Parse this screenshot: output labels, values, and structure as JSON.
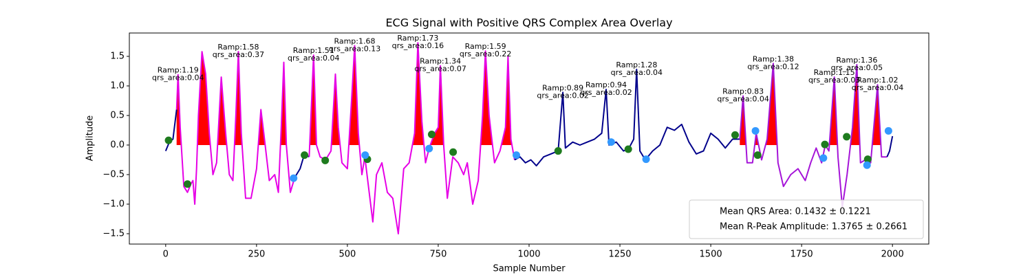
{
  "chart_data": {
    "type": "line",
    "title": "ECG Signal with Positive QRS Complex Area Overlay",
    "xlabel": "Sample Number",
    "ylabel": "Amplitude",
    "xlim": [
      -100,
      2100
    ],
    "ylim": [
      -1.675,
      1.895
    ],
    "xticks": [
      0,
      250,
      500,
      750,
      1000,
      1250,
      1500,
      1750,
      2000
    ],
    "yticks": [
      {
        "value": -1.5,
        "label": "−1.5"
      },
      {
        "value": -1,
        "label": "−1.0"
      },
      {
        "value": -0.5,
        "label": "−0.5"
      },
      {
        "value": 0,
        "label": "0.0"
      },
      0.5,
      {
        "value": 1,
        "label": "1.0"
      },
      1.5
    ],
    "fill_positive_color": "#ff0000",
    "series": [
      {
        "color": "#00008b",
        "fill_positive": false,
        "x": [
          0,
          10,
          20,
          30
        ],
        "values": [
          -0.1,
          0.05,
          0.1,
          0.6
        ]
      },
      {
        "color": "#e600e6",
        "fill_positive": true,
        "x": [
          30,
          34,
          40,
          50,
          60,
          70,
          75,
          80,
          85,
          90,
          100,
          110,
          120,
          130,
          140,
          153,
          165,
          175,
          185,
          193,
          200,
          208,
          220,
          235,
          250,
          262,
          270,
          285,
          300,
          310,
          318,
          325,
          332,
          343,
          355
        ],
        "values": [
          0.6,
          1.19,
          0.3,
          -0.7,
          -0.8,
          -0.65,
          -0.6,
          -1.0,
          -0.4,
          0.5,
          1.58,
          1.2,
          0.2,
          -0.5,
          -0.3,
          1.15,
          0.2,
          -0.5,
          -0.6,
          0.5,
          1.58,
          0.2,
          -0.9,
          -0.9,
          -0.4,
          0.6,
          0.2,
          -0.6,
          -0.5,
          -0.8,
          0.3,
          1.4,
          0.0,
          -0.8,
          -0.55
        ]
      },
      {
        "color": "#00008b",
        "fill_positive": false,
        "x": [
          355,
          370,
          382,
          395
        ],
        "values": [
          -0.55,
          -0.4,
          -0.15,
          -0.2
        ]
      },
      {
        "color": "#e600e6",
        "fill_positive": true,
        "x": [
          395,
          407,
          415,
          425,
          440,
          455,
          467,
          475,
          485,
          500,
          512,
          520,
          530,
          540,
          548,
          560,
          570,
          580,
          595,
          610,
          625,
          640,
          655,
          670,
          685,
          694,
          705,
          715,
          725,
          740,
          750,
          756,
          765,
          775,
          790,
          805,
          820,
          830,
          845,
          860,
          872,
          880,
          890,
          905,
          920,
          935,
          942,
          950,
          960
        ],
        "values": [
          -0.2,
          1.52,
          0.0,
          -0.2,
          -0.25,
          -0.1,
          1.2,
          0.3,
          -0.3,
          -0.4,
          0.8,
          1.68,
          0.2,
          -0.5,
          -0.2,
          -0.8,
          -1.3,
          -0.5,
          -0.3,
          -0.8,
          -0.9,
          -1.5,
          -0.4,
          -0.3,
          0.2,
          1.73,
          0.4,
          -0.3,
          -0.05,
          0.2,
          0.3,
          1.34,
          0.0,
          -0.9,
          -0.2,
          -0.3,
          -0.5,
          -0.3,
          -1.0,
          -0.6,
          0.5,
          1.59,
          0.5,
          -0.3,
          -0.1,
          0.3,
          1.5,
          0.1,
          -0.25
        ]
      },
      {
        "color": "#00008b",
        "fill_positive": false,
        "x": [
          960,
          975,
          990,
          1005,
          1020,
          1040,
          1060,
          1080,
          1093,
          1100,
          1120,
          1140,
          1160,
          1180,
          1200,
          1212,
          1220,
          1240,
          1260,
          1275,
          1288,
          1296,
          1305,
          1320,
          1340,
          1360,
          1380,
          1400,
          1420,
          1440,
          1460,
          1480,
          1500,
          1520,
          1540,
          1560,
          1580
        ],
        "values": [
          -0.25,
          -0.2,
          -0.3,
          -0.25,
          -0.35,
          -0.2,
          -0.15,
          -0.1,
          0.89,
          -0.05,
          0.05,
          0.0,
          0.05,
          0.1,
          0.2,
          0.94,
          0.0,
          0.05,
          -0.1,
          -0.05,
          0.1,
          1.28,
          -0.1,
          -0.25,
          -0.1,
          0.0,
          0.3,
          0.25,
          0.35,
          0.05,
          -0.15,
          -0.1,
          0.2,
          0.1,
          -0.05,
          0.1,
          0.1
        ]
      },
      {
        "color": "#a514d8",
        "fill_positive": true,
        "x": [
          1580,
          1589,
          1600,
          1615,
          1625,
          1640,
          1655,
          1672,
          1685,
          1700,
          1720,
          1740,
          1760,
          1775,
          1790,
          1805,
          1815,
          1825,
          1840,
          1850,
          1862,
          1875,
          1890,
          1902,
          1912,
          1925,
          1940,
          1959,
          1970,
          1985
        ],
        "values": [
          0.1,
          0.83,
          -0.3,
          -0.3,
          0.2,
          -0.25,
          0.1,
          1.38,
          -0.3,
          -0.7,
          -0.5,
          -0.4,
          -0.6,
          -0.3,
          -0.05,
          -0.3,
          0.0,
          -0.1,
          1.15,
          -0.2,
          -1.05,
          -0.5,
          0.3,
          1.36,
          -0.3,
          -0.25,
          -0.3,
          1.02,
          -0.2,
          -0.2
        ]
      },
      {
        "color": "#00008b",
        "fill_positive": false,
        "x": [
          1985,
          1992,
          2000
        ],
        "values": [
          -0.2,
          -0.1,
          0.15
        ]
      }
    ],
    "scatter": [
      {
        "color": "#1e7b1e",
        "x": [
          8,
          60,
          382,
          439,
          555,
          732,
          791,
          1080,
          1273,
          1567,
          1629,
          1814,
          1874,
          1932
        ],
        "values": [
          0.08,
          -0.66,
          -0.17,
          -0.26,
          -0.24,
          0.18,
          -0.12,
          -0.1,
          -0.07,
          0.17,
          -0.17,
          0.01,
          0.14,
          -0.24
        ]
      },
      {
        "color": "#3399ff",
        "x": [
          352,
          549,
          725,
          965,
          1226,
          1322,
          1623,
          1810,
          1930,
          1989
        ],
        "values": [
          -0.56,
          -0.17,
          -0.06,
          -0.17,
          0.05,
          -0.24,
          0.24,
          -0.22,
          -0.34,
          0.24
        ]
      }
    ],
    "annotations": [
      {
        "lines": [
          "Ramp:1.19",
          "qrs_area:0.04"
        ],
        "x": 34,
        "y": 1.19
      },
      {
        "lines": [
          "Ramp:1.58",
          "qrs_area:0.37"
        ],
        "x": 200,
        "y": 1.58
      },
      {
        "lines": [
          "Ramp:1.51",
          "qrs_area:0.04"
        ],
        "x": 407,
        "y": 1.52
      },
      {
        "lines": [
          "Ramp:1.68",
          "qrs_area:0.13"
        ],
        "x": 520,
        "y": 1.68
      },
      {
        "lines": [
          "Ramp:1.73",
          "qrs_area:0.16"
        ],
        "x": 694,
        "y": 1.73
      },
      {
        "lines": [
          "Ramp:1.34",
          "qrs_area:0.07"
        ],
        "x": 756,
        "y": 1.34
      },
      {
        "lines": [
          "Ramp:1.59",
          "qrs_area:0.22"
        ],
        "x": 880,
        "y": 1.59
      },
      {
        "lines": [
          "Ramp:0.89",
          "qrs_area:0.02"
        ],
        "x": 1093,
        "y": 0.89
      },
      {
        "lines": [
          "Ramp:0.94",
          "qrs_area:0.02"
        ],
        "x": 1212,
        "y": 0.94
      },
      {
        "lines": [
          "Ramp:1.28",
          "qrs_area:0.04"
        ],
        "x": 1296,
        "y": 1.28
      },
      {
        "lines": [
          "Ramp:0.83",
          "qrs_area:0.04"
        ],
        "x": 1589,
        "y": 0.83
      },
      {
        "lines": [
          "Ramp:1.38",
          "qrs_area:0.12"
        ],
        "x": 1672,
        "y": 1.38
      },
      {
        "lines": [
          "Ramp:1.15",
          "qrs_area:0.03"
        ],
        "x": 1840,
        "y": 1.15
      },
      {
        "lines": [
          "Ramp:1.36",
          "qrs_area:0.05"
        ],
        "x": 1902,
        "y": 1.36
      },
      {
        "lines": [
          "Ramp:1.02",
          "qrs_area:0.04"
        ],
        "x": 1959,
        "y": 1.02
      }
    ],
    "legend": {
      "loc": "lower right",
      "entries": [
        "Mean QRS Area: 0.1432 ± 0.1221",
        "Mean R-Peak Amplitude: 1.3765 ± 0.2661"
      ]
    }
  }
}
